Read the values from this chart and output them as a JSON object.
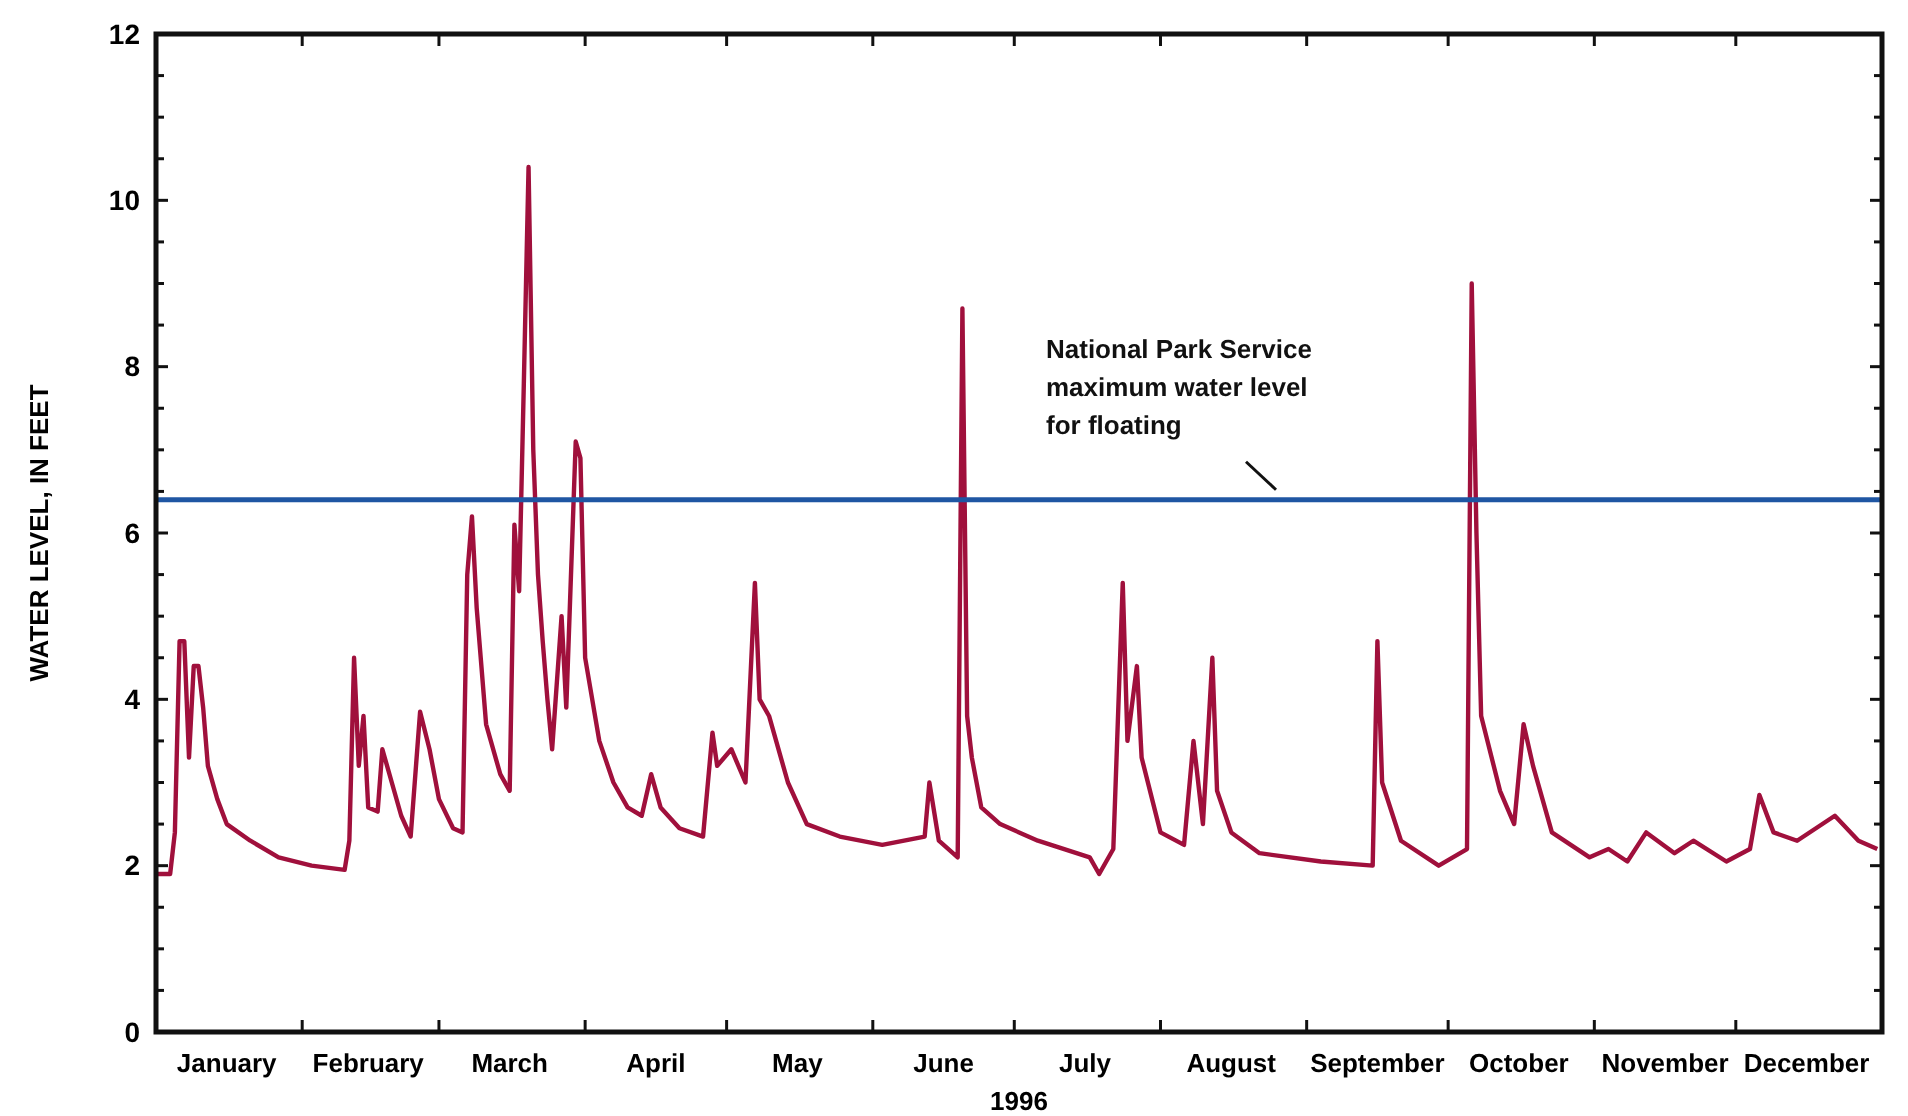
{
  "chart_data": {
    "type": "line",
    "xlabel": "1996",
    "ylabel": "WATER LEVEL, IN FEET",
    "xlim": [
      "1996-01-01",
      "1997-01-01"
    ],
    "ylim": [
      0,
      12
    ],
    "yticks": [
      0,
      {
        "value": 0.5,
        "label": null
      },
      {
        "value": 1,
        "label": null
      },
      {
        "value": 1.5,
        "label": null
      },
      2,
      {
        "value": 2.5,
        "label": null
      },
      {
        "value": 3,
        "label": null
      },
      {
        "value": 3.5,
        "label": null
      },
      4,
      {
        "value": 4.5,
        "label": null
      },
      {
        "value": 5,
        "label": null
      },
      {
        "value": 5.5,
        "label": null
      },
      6,
      {
        "value": 6.5,
        "label": null
      },
      {
        "value": 7,
        "label": null
      },
      {
        "value": 7.5,
        "label": null
      },
      8,
      {
        "value": 8.5,
        "label": null
      },
      {
        "value": 9,
        "label": null
      },
      {
        "value": 9.5,
        "label": null
      },
      10,
      {
        "value": 10.5,
        "label": null
      },
      {
        "value": 11,
        "label": null
      },
      {
        "value": 11.5,
        "label": null
      },
      12
    ],
    "xticks": [
      {
        "value": "1996-01-16",
        "label": "January"
      },
      {
        "value": "1996-02-01",
        "label": null
      },
      {
        "value": "1996-02-15",
        "label": "February"
      },
      {
        "value": "1996-03-01",
        "label": null
      },
      {
        "value": "1996-03-16",
        "label": "March"
      },
      {
        "value": "1996-04-01",
        "label": null
      },
      {
        "value": "1996-04-16",
        "label": "April"
      },
      {
        "value": "1996-05-01",
        "label": null
      },
      {
        "value": "1996-05-16",
        "label": "May"
      },
      {
        "value": "1996-06-01",
        "label": null
      },
      {
        "value": "1996-06-16",
        "label": "June"
      },
      {
        "value": "1996-07-01",
        "label": null
      },
      {
        "value": "1996-07-16",
        "label": "July"
      },
      {
        "value": "1996-08-01",
        "label": null
      },
      {
        "value": "1996-08-16",
        "label": "August"
      },
      {
        "value": "1996-09-01",
        "label": null
      },
      {
        "value": "1996-09-16",
        "label": "September"
      },
      {
        "value": "1996-10-01",
        "label": null
      },
      {
        "value": "1996-10-16",
        "label": "October"
      },
      {
        "value": "1996-11-01",
        "label": null
      },
      {
        "value": "1996-11-16",
        "label": "November"
      },
      {
        "value": "1996-12-01",
        "label": null
      },
      {
        "value": "1996-12-16",
        "label": "December"
      }
    ],
    "grid": false,
    "line_style": "solid",
    "marker": "none",
    "ref_lines": [
      {
        "axis": "y",
        "value": 6.4,
        "label": "National Park Service maximum water level for floating",
        "color": "#1f56a3",
        "line_style": "solid"
      }
    ],
    "x": [
      "1996-01-01",
      "1996-01-04",
      "1996-01-05",
      "1996-01-06",
      "1996-01-07",
      "1996-01-08",
      "1996-01-09",
      "1996-01-10",
      "1996-01-11",
      "1996-01-12",
      "1996-01-14",
      "1996-01-16",
      "1996-01-21",
      "1996-01-27",
      "1996-02-03",
      "1996-02-10",
      "1996-02-11",
      "1996-02-12",
      "1996-02-13",
      "1996-02-14",
      "1996-02-15",
      "1996-02-17",
      "1996-02-18",
      "1996-02-20",
      "1996-02-22",
      "1996-02-24",
      "1996-02-26",
      "1996-02-28",
      "1996-03-01",
      "1996-03-04",
      "1996-03-06",
      "1996-03-07",
      "1996-03-08",
      "1996-03-09",
      "1996-03-11",
      "1996-03-14",
      "1996-03-16",
      "1996-03-17",
      "1996-03-18",
      "1996-03-19",
      "1996-03-20",
      "1996-03-21",
      "1996-03-22",
      "1996-03-23",
      "1996-03-24",
      "1996-03-25",
      "1996-03-26",
      "1996-03-27",
      "1996-03-28",
      "1996-03-30",
      "1996-03-31",
      "1996-04-01",
      "1996-04-04",
      "1996-04-07",
      "1996-04-10",
      "1996-04-13",
      "1996-04-15",
      "1996-04-17",
      "1996-04-21",
      "1996-04-26",
      "1996-04-28",
      "1996-04-29",
      "1996-05-02",
      "1996-05-05",
      "1996-05-07",
      "1996-05-08",
      "1996-05-10",
      "1996-05-14",
      "1996-05-18",
      "1996-05-25",
      "1996-06-03",
      "1996-06-12",
      "1996-06-13",
      "1996-06-15",
      "1996-06-19",
      "1996-06-20",
      "1996-06-21",
      "1996-06-22",
      "1996-06-24",
      "1996-06-28",
      "1996-07-06",
      "1996-07-17",
      "1996-07-19",
      "1996-07-22",
      "1996-07-24",
      "1996-07-25",
      "1996-07-27",
      "1996-07-28",
      "1996-08-01",
      "1996-08-06",
      "1996-08-08",
      "1996-08-10",
      "1996-08-12",
      "1996-08-13",
      "1996-08-16",
      "1996-08-22",
      "1996-09-04",
      "1996-09-15",
      "1996-09-16",
      "1996-09-17",
      "1996-09-21",
      "1996-09-29",
      "1996-10-05",
      "1996-10-06",
      "1996-10-07",
      "1996-10-08",
      "1996-10-12",
      "1996-10-15",
      "1996-10-17",
      "1996-10-19",
      "1996-10-23",
      "1996-10-31",
      "1996-11-04",
      "1996-11-08",
      "1996-11-12",
      "1996-11-18",
      "1996-11-22",
      "1996-11-29",
      "1996-12-04",
      "1996-12-06",
      "1996-12-09",
      "1996-12-14",
      "1996-12-22",
      "1996-12-27",
      "1996-12-31"
    ],
    "series": [
      {
        "color": "#a0103c",
        "values": [
          1.9,
          1.9,
          2.4,
          4.7,
          4.7,
          3.3,
          4.4,
          4.4,
          3.9,
          3.2,
          2.8,
          2.5,
          2.3,
          2.1,
          2.0,
          1.95,
          2.3,
          4.5,
          3.2,
          3.8,
          2.7,
          2.65,
          3.4,
          3.0,
          2.6,
          2.35,
          3.85,
          3.4,
          2.8,
          2.45,
          2.4,
          5.5,
          6.2,
          5.1,
          3.7,
          3.1,
          2.9,
          6.1,
          5.3,
          7.8,
          10.4,
          7.0,
          5.5,
          4.7,
          4.0,
          3.4,
          4.2,
          5.0,
          3.9,
          7.1,
          6.9,
          4.5,
          3.5,
          3.0,
          2.7,
          2.6,
          3.1,
          2.7,
          2.45,
          2.35,
          3.6,
          3.2,
          3.4,
          3.0,
          5.4,
          4.0,
          3.8,
          3.0,
          2.5,
          2.35,
          2.25,
          2.35,
          3.0,
          2.3,
          2.1,
          8.7,
          3.8,
          3.3,
          2.7,
          2.5,
          2.3,
          2.1,
          1.9,
          2.2,
          5.4,
          3.5,
          4.4,
          3.3,
          2.4,
          2.25,
          3.5,
          2.5,
          4.5,
          2.9,
          2.4,
          2.15,
          2.05,
          2.0,
          4.7,
          3.0,
          2.3,
          2.0,
          2.2,
          9.0,
          6.0,
          3.8,
          2.9,
          2.5,
          3.7,
          3.2,
          2.4,
          2.1,
          2.2,
          2.05,
          2.4,
          2.15,
          2.3,
          2.05,
          2.2,
          2.85,
          2.4,
          2.3,
          2.6,
          2.3,
          2.2
        ]
      }
    ]
  }
}
